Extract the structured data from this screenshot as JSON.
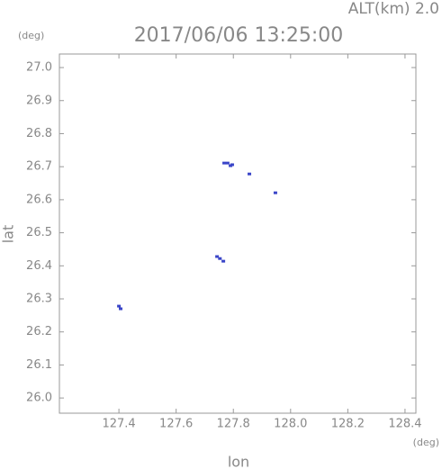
{
  "chart_data": {
    "type": "scatter",
    "title": "2017/06/06 13:25:00",
    "annotation": "ALT(km)  2.0",
    "x_label": "lon",
    "y_label": "lat",
    "x_unit": "(deg)",
    "y_unit": "(deg)",
    "color": "#3a45c8",
    "series": [
      {
        "x": [
          127.768,
          127.78,
          127.79,
          127.796,
          127.856,
          127.947,
          127.743,
          127.753,
          127.765,
          127.4,
          127.406
        ],
        "values": [
          26.711,
          26.711,
          26.703,
          26.706,
          26.678,
          26.621,
          26.428,
          26.422,
          26.414,
          26.278,
          26.27
        ]
      }
    ],
    "xlim": [
      127.192,
      128.438
    ],
    "ylim": [
      25.954,
      27.041
    ],
    "xticks": [
      {
        "value": 127.4,
        "label": "127.4"
      },
      {
        "value": 127.6,
        "label": "127.6"
      },
      {
        "value": 127.8,
        "label": "127.8"
      },
      {
        "value": 128.0,
        "label": "128.0"
      },
      {
        "value": 128.2,
        "label": "128.2"
      },
      {
        "value": 128.4,
        "label": "128.4"
      }
    ],
    "yticks": [
      {
        "value": 26.0,
        "label": "26.0"
      },
      26.1,
      26.2,
      26.3,
      26.4,
      26.5,
      26.6,
      26.7,
      26.8,
      26.9,
      {
        "value": 27.0,
        "label": "27.0"
      }
    ]
  }
}
